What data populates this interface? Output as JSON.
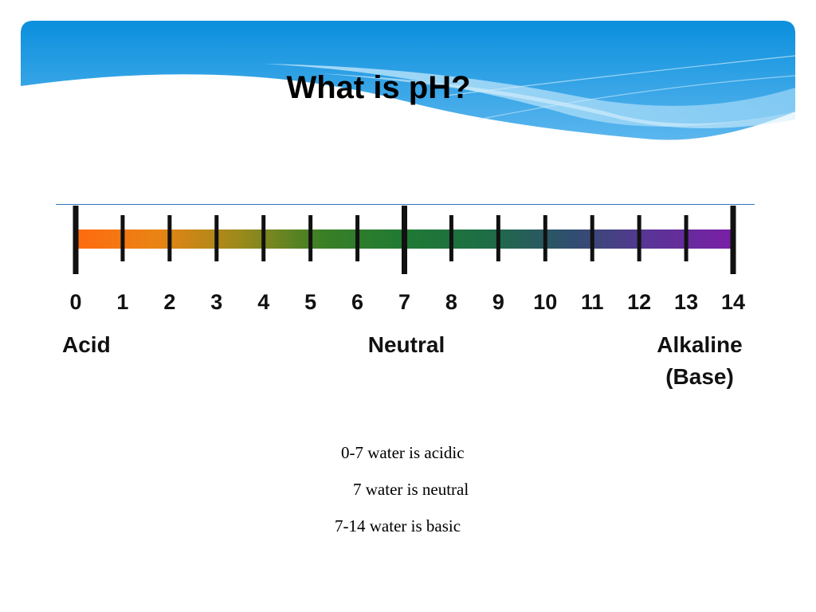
{
  "slide": {
    "title": "What is pH?"
  },
  "scale": {
    "ticks": [
      "0",
      "1",
      "2",
      "3",
      "4",
      "5",
      "6",
      "7",
      "8",
      "9",
      "10",
      "11",
      "12",
      "13",
      "14"
    ],
    "major_ticks": [
      "0",
      "7",
      "14"
    ],
    "labels": {
      "acid": "Acid",
      "neutral": "Neutral",
      "alkaline": "Alkaline",
      "base": "(Base)"
    },
    "gradient_colors": [
      "#ff6a10",
      "#e98414",
      "#9b8a1c",
      "#3a7f26",
      "#1f7a33",
      "#1e6d45",
      "#2f4f6e",
      "#5a3496",
      "#7a1fa6"
    ]
  },
  "notes": {
    "acidic": "0-7 water is acidic",
    "neutral": "7 water is neutral",
    "basic": "7-14 water is basic"
  },
  "theme": {
    "banner_dark": "#0a93e0",
    "banner_light": "#9ad5f7"
  }
}
